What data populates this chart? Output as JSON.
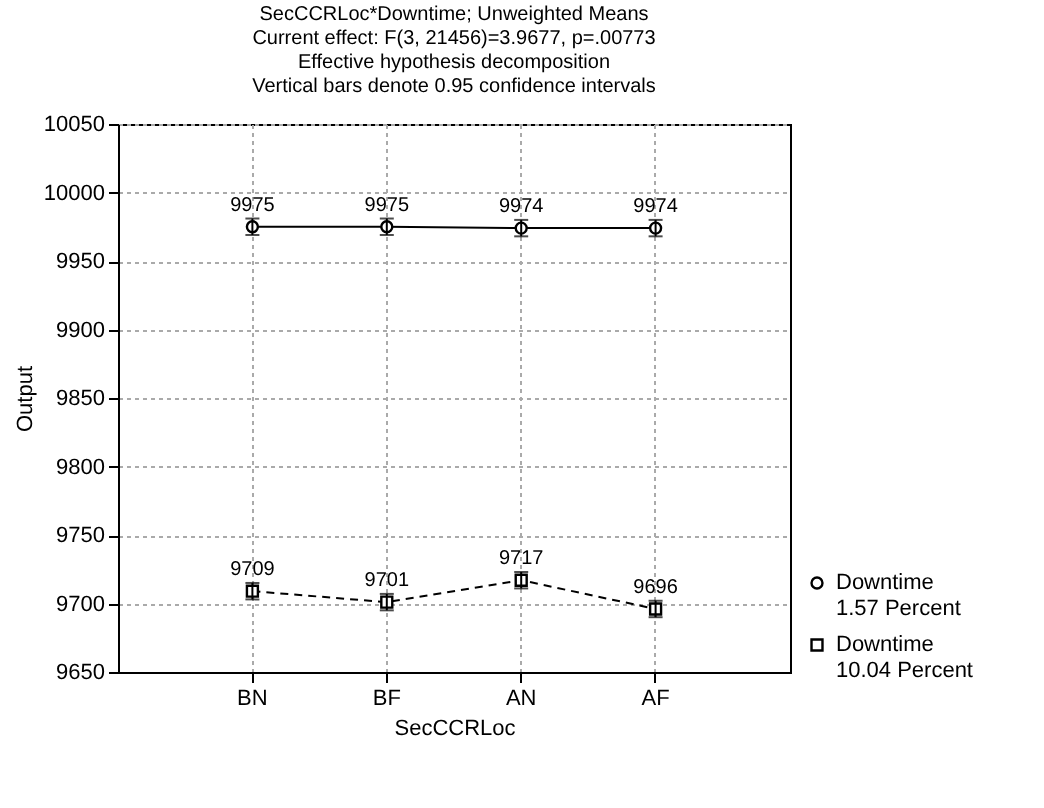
{
  "chart_data": {
    "type": "line",
    "title": "SecCCRLoc*Downtime; Unweighted Means",
    "annotations": [
      "Current effect: F(3, 21456)=3.9677, p=.00773",
      "Effective hypothesis decomposition",
      "Vertical bars denote 0.95 confidence intervals"
    ],
    "xlabel": "SecCCRLoc",
    "ylabel": "Output",
    "categories": [
      "BN",
      "BF",
      "AN",
      "AF"
    ],
    "series": [
      {
        "name": "Downtime 1.57 Percent",
        "color": "#000000",
        "marker": "circle",
        "line_style": "solid",
        "values": [
          9975,
          9975,
          9974,
          9974
        ],
        "errors": [
          6,
          6,
          6,
          6
        ]
      },
      {
        "name": "Downtime 10.04 Percent",
        "color": "#000000",
        "marker": "square",
        "line_style": "dashed",
        "values": [
          9709,
          9701,
          9717,
          9696
        ],
        "errors": [
          6,
          6,
          6,
          6
        ]
      }
    ],
    "ylim": [
      9650,
      10050
    ],
    "yticks": [
      9650,
      9700,
      9750,
      9800,
      9850,
      9900,
      9950,
      10000,
      10050
    ],
    "grid": true,
    "legend": "bottom right",
    "data_labels": true
  }
}
